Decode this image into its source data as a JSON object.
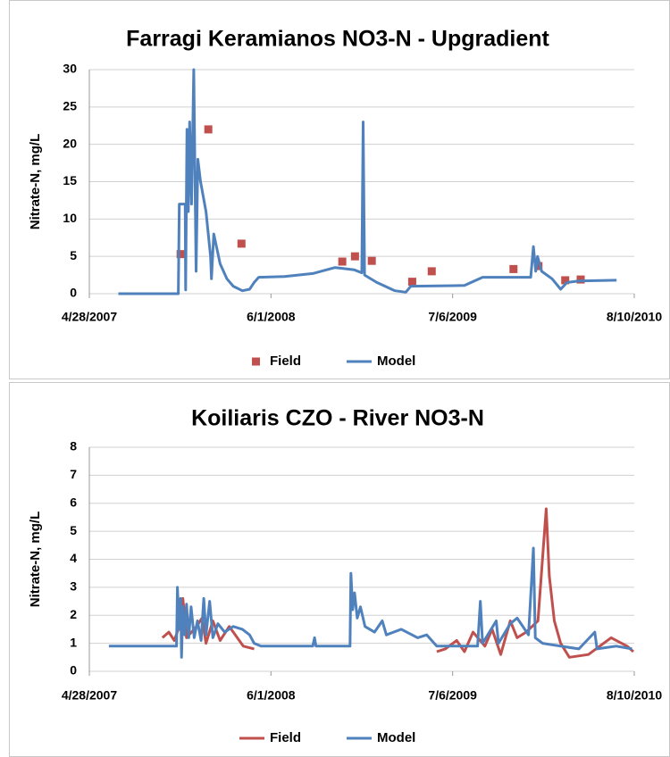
{
  "chart_data": [
    {
      "type": "line",
      "title": "Farragi Keramianos NO3-N - Upgradient",
      "y_label": "Nitrate-N, mg/L",
      "xlim": [
        "2007-04-28",
        "2010-08-10"
      ],
      "xticks": [
        {
          "value": "2007-04-28",
          "label": "4/28/2007"
        },
        {
          "value": "2008-06-01",
          "label": "6/1/2008"
        },
        {
          "value": "2009-07-06",
          "label": "7/6/2009"
        },
        {
          "value": "2010-08-10",
          "label": "8/10/2010"
        }
      ],
      "ylim": [
        0,
        30
      ],
      "yticks": [
        0,
        5,
        10,
        15,
        20,
        25,
        30
      ],
      "grid": true,
      "legend": "bottom",
      "series": [
        {
          "name": "Field",
          "type": "scatter",
          "color": "#c0504d",
          "x": [
            "2007-11-15",
            "2008-01-15",
            "2008-03-28",
            "2008-11-05",
            "2008-12-03",
            "2009-01-09",
            "2009-04-08",
            "2009-05-21",
            "2009-11-17",
            "2010-01-11",
            "2010-03-11",
            "2010-04-14"
          ],
          "values": [
            5.3,
            22,
            6.7,
            4.3,
            5.0,
            4.4,
            1.6,
            3.0,
            3.3,
            3.7,
            1.8,
            1.9
          ]
        },
        {
          "name": "Model",
          "type": "line",
          "color": "#4f81bd",
          "x": [
            "2007-07-01",
            "2007-11-10",
            "2007-11-12",
            "2007-11-25",
            "2007-11-26",
            "2007-11-29",
            "2007-12-02",
            "2007-12-05",
            "2007-12-09",
            "2007-12-14",
            "2007-12-19",
            "2007-12-23",
            "2007-12-29",
            "2008-01-10",
            "2008-01-20",
            "2008-01-22",
            "2008-01-27",
            "2008-02-10",
            "2008-02-25",
            "2008-03-10",
            "2008-03-30",
            "2008-04-15",
            "2008-04-25",
            "2008-05-05",
            "2008-07-01",
            "2008-09-01",
            "2008-10-20",
            "2008-12-01",
            "2008-12-18",
            "2008-12-21",
            "2008-12-24",
            "2009-01-20",
            "2009-03-01",
            "2009-03-25",
            "2009-04-05",
            "2009-08-01",
            "2009-09-10",
            "2009-12-25",
            "2009-12-31",
            "2010-01-05",
            "2010-01-09",
            "2010-01-18",
            "2010-02-10",
            "2010-03-01",
            "2010-03-15",
            "2010-04-10",
            "2010-07-02"
          ],
          "values": [
            0,
            0,
            12,
            12,
            0.5,
            22,
            11,
            23,
            12,
            30,
            3,
            18,
            15,
            11,
            5,
            2,
            8,
            4,
            2,
            1,
            0.4,
            0.6,
            1.5,
            2.2,
            2.3,
            2.7,
            3.5,
            3.2,
            2.8,
            23,
            2.5,
            1.5,
            0.4,
            0.2,
            1.0,
            1.1,
            2.2,
            2.2,
            6.3,
            3,
            5,
            3,
            2,
            0.6,
            1.5,
            1.7,
            1.8
          ]
        }
      ]
    },
    {
      "type": "line",
      "title": "Koiliaris CZO - River NO3-N",
      "y_label": "Nitrate-N, mg/L",
      "xlim": [
        "2007-04-28",
        "2010-08-10"
      ],
      "xticks": [
        {
          "value": "2007-04-28",
          "label": "4/28/2007"
        },
        {
          "value": "2008-06-01",
          "label": "6/1/2008"
        },
        {
          "value": "2009-07-06",
          "label": "7/6/2009"
        },
        {
          "value": "2010-08-10",
          "label": "8/10/2010"
        }
      ],
      "ylim": [
        0,
        8
      ],
      "yticks": [
        0,
        1,
        2,
        3,
        4,
        5,
        6,
        7,
        8
      ],
      "grid": true,
      "legend": "bottom",
      "series": [
        {
          "name": "Field",
          "type": "line",
          "color": "#c0504d",
          "x": [
            "2007-10-06",
            "2007-10-20",
            "2007-11-01",
            "2007-11-10",
            "2007-11-20",
            "2007-11-28",
            "2007-12-20",
            "2008-01-01",
            "2008-01-10",
            "2008-01-25",
            "2008-02-10",
            "2008-03-01",
            "2008-04-01",
            "2008-04-25",
            null,
            "2009-06-01",
            "2009-06-20",
            "2009-07-15",
            "2009-08-01",
            "2009-08-20",
            "2009-09-15",
            "2009-10-01",
            "2009-10-20",
            "2009-11-10",
            "2009-11-25",
            "2009-12-15",
            "2010-01-10",
            "2010-01-28",
            "2010-02-04",
            "2010-02-15",
            "2010-03-01",
            "2010-03-20",
            "2010-05-01",
            "2010-06-20",
            "2010-07-25",
            "2010-08-08"
          ],
          "values": [
            1.2,
            1.4,
            1.1,
            1.5,
            2.6,
            1.2,
            1.6,
            1.9,
            1.0,
            1.8,
            1.1,
            1.6,
            0.9,
            0.8,
            null,
            0.7,
            0.8,
            1.1,
            0.7,
            1.4,
            0.9,
            1.5,
            0.6,
            1.8,
            1.2,
            1.4,
            1.8,
            5.8,
            3.4,
            1.8,
            1.0,
            0.5,
            0.6,
            1.2,
            0.9,
            0.7
          ]
        },
        {
          "name": "Model",
          "type": "line",
          "color": "#4f81bd",
          "x": [
            "2007-06-10",
            "2007-11-06",
            "2007-11-08",
            "2007-11-12",
            "2007-11-15",
            "2007-11-17",
            "2007-11-20",
            "2007-11-24",
            "2007-11-28",
            "2007-12-03",
            "2007-12-08",
            "2007-12-15",
            "2007-12-22",
            "2007-12-30",
            "2008-01-05",
            "2008-01-10",
            "2008-01-18",
            "2008-01-25",
            "2008-02-05",
            "2008-02-20",
            "2008-03-10",
            "2008-03-30",
            "2008-04-15",
            "2008-04-25",
            "2008-05-10",
            "2008-09-01",
            "2008-09-05",
            "2008-09-08",
            "2008-11-22",
            "2008-11-24",
            "2008-11-28",
            "2008-12-02",
            "2008-12-08",
            "2008-12-15",
            "2008-12-25",
            "2009-01-15",
            "2009-02-01",
            "2009-02-10",
            "2009-03-15",
            "2009-04-20",
            "2009-05-10",
            "2009-06-01",
            "2009-08-30",
            "2009-09-05",
            "2009-09-10",
            "2009-10-10",
            "2009-10-15",
            "2009-11-10",
            "2009-11-25",
            "2009-12-20",
            "2009-12-31",
            "2010-01-04",
            "2010-01-20",
            "2010-03-01",
            "2010-04-10",
            "2010-05-15",
            "2010-05-20",
            "2010-07-01",
            "2010-08-05"
          ],
          "values": [
            0.9,
            0.9,
            3.0,
            1.5,
            2.6,
            0.5,
            2.3,
            1.3,
            2.4,
            1.2,
            2.3,
            1.2,
            1.8,
            1.1,
            2.6,
            1.3,
            2.5,
            1.2,
            1.7,
            1.4,
            1.6,
            1.5,
            1.3,
            1.0,
            0.9,
            0.9,
            1.2,
            0.9,
            0.9,
            3.5,
            2.2,
            2.8,
            1.9,
            2.3,
            1.6,
            1.4,
            1.8,
            1.3,
            1.5,
            1.2,
            1.3,
            0.9,
            0.9,
            2.5,
            1.0,
            1.8,
            1.0,
            1.7,
            1.9,
            1.3,
            4.4,
            1.2,
            1.0,
            0.9,
            0.8,
            1.4,
            0.8,
            0.9,
            0.8
          ]
        }
      ]
    }
  ]
}
